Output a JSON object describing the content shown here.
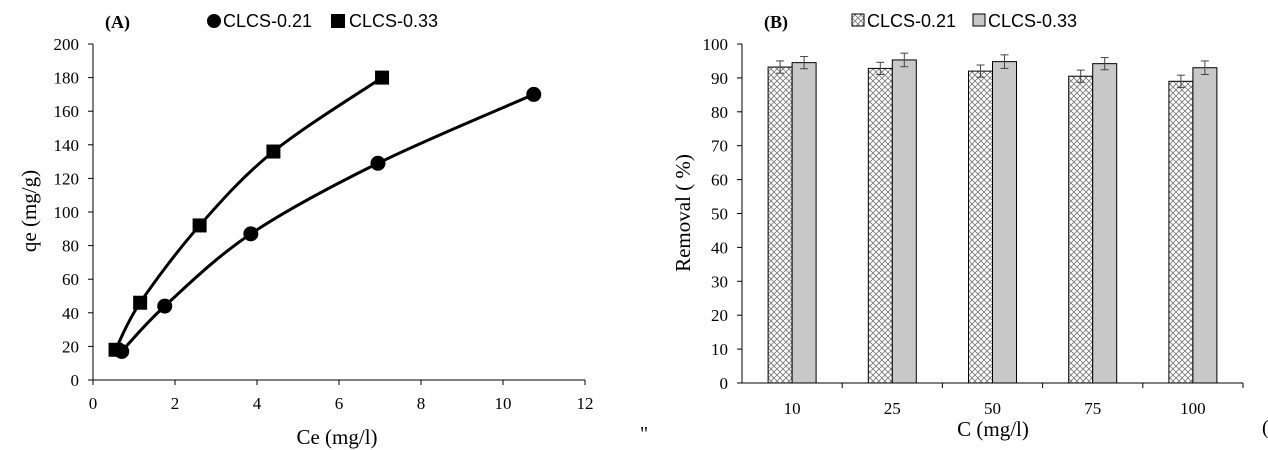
{
  "chart_data": [
    {
      "type": "scatter",
      "panel_label": "(A)",
      "xlabel": "Ce (mg/l)",
      "ylabel": "qe (mg/g)",
      "xlim": [
        0,
        12
      ],
      "ylim": [
        0,
        200
      ],
      "xticks": [
        "0",
        "2",
        "4",
        "6",
        "8",
        "10",
        "12"
      ],
      "yticks": [
        "0",
        "20",
        "40",
        "60",
        "80",
        "100",
        "120",
        "140",
        "160",
        "180",
        "200"
      ],
      "legend_position": "top",
      "series": [
        {
          "name": "CLCS-0.21",
          "marker": "circle",
          "points": [
            [
              0.7,
              17
            ],
            [
              1.75,
              44
            ],
            [
              3.85,
              87
            ],
            [
              6.95,
              129
            ],
            [
              10.75,
              170
            ]
          ]
        },
        {
          "name": "CLCS-0.33",
          "marker": "square",
          "points": [
            [
              0.55,
              18
            ],
            [
              1.15,
              46
            ],
            [
              2.6,
              92
            ],
            [
              4.4,
              136
            ],
            [
              7.05,
              180
            ]
          ]
        }
      ]
    },
    {
      "type": "bar",
      "panel_label": "(B)",
      "xlabel": "C (mg/l)",
      "ylabel": "Removal ( %)",
      "ylim": [
        0,
        100
      ],
      "yticks": [
        "0",
        "10",
        "20",
        "30",
        "40",
        "50",
        "60",
        "70",
        "80",
        "90",
        "100"
      ],
      "categories": [
        "10",
        "25",
        "50",
        "75",
        "100"
      ],
      "legend_position": "top",
      "error_bars": true,
      "series": [
        {
          "name": "CLCS-0.21",
          "pattern": "crosshatch",
          "values": [
            93.2,
            92.8,
            92.0,
            90.5,
            89.0
          ],
          "errors": [
            1.8,
            1.8,
            1.8,
            1.8,
            1.8
          ]
        },
        {
          "name": "CLCS-0.33",
          "pattern": "solid-gray",
          "values": [
            94.5,
            95.3,
            94.8,
            94.2,
            93.0
          ],
          "errors": [
            1.8,
            2.0,
            2.0,
            1.8,
            2.0
          ]
        }
      ]
    }
  ],
  "stray_marks": [
    "\"",
    "("
  ]
}
